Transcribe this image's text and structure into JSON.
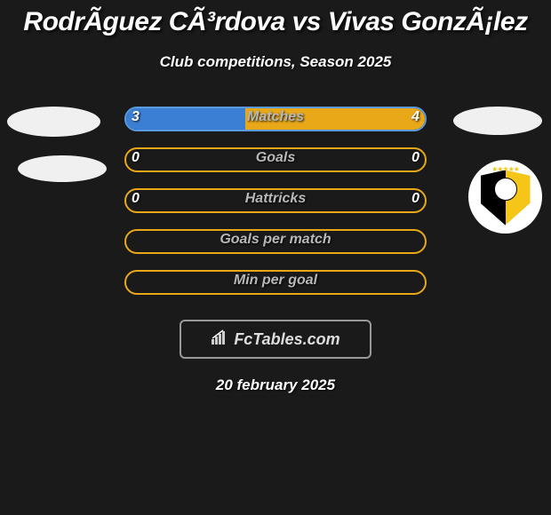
{
  "title": "RodrÃ­guez CÃ³rdova vs Vivas GonzÃ¡lez",
  "subtitle": "Club competitions, Season 2025",
  "date": "20 february 2025",
  "brand": "FcTables.com",
  "colors": {
    "left_fill": "#3b7fd4",
    "right_fill": "#e8a818",
    "border_blue": "#5a9be0",
    "border_yellow": "#e8a818",
    "background": "#1a1a1a"
  },
  "stats": [
    {
      "label": "Matches",
      "left_val": "3",
      "right_val": "4",
      "left_pct": 40,
      "right_pct": 60,
      "border_color": "#5a9be0"
    },
    {
      "label": "Goals",
      "left_val": "0",
      "right_val": "0",
      "left_pct": 0,
      "right_pct": 0,
      "border_color": "#e8a818"
    },
    {
      "label": "Hattricks",
      "left_val": "0",
      "right_val": "0",
      "left_pct": 0,
      "right_pct": 0,
      "border_color": "#e8a818"
    },
    {
      "label": "Goals per match",
      "left_val": "",
      "right_val": "",
      "left_pct": 0,
      "right_pct": 0,
      "border_color": "#e8a818"
    },
    {
      "label": "Min per goal",
      "left_val": "",
      "right_val": "",
      "left_pct": 0,
      "right_pct": 0,
      "border_color": "#e8a818"
    }
  ]
}
